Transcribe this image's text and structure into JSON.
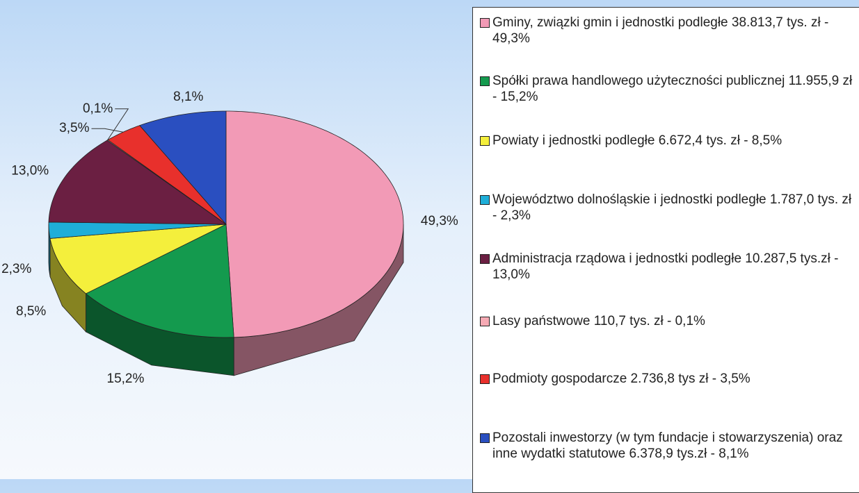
{
  "chart_data": {
    "type": "pie",
    "categories": [
      "Gminy, związki gmin i jednostki podległe 38.813,7 tys. zł - 49,3%",
      "Spółki prawa handlowego użyteczności publicznej 11.955,9 zł - 15,2%",
      "Powiaty i jednostki podległe 6.672,4 tys. zł - 8,5%",
      "Województwo dolnośląskie i jednostki  podległe 1.787,0 tys. zł - 2,3%",
      "Administracja rządowa i jednostki podległe  10.287,5 tys.zł - 13,0%",
      "Lasy państwowe 110,7 tys. zł - 0,1%",
      "Podmioty gospodarcze 2.736,8 tys zł - 3,5%",
      "Pozostali inwestorzy (w tym fundacje i stowarzyszenia) oraz inne wydatki statutowe 6.378,9 tys.zł - 8,1%"
    ],
    "values": [
      49.3,
      15.2,
      8.5,
      2.3,
      13.0,
      0.1,
      3.5,
      8.1
    ],
    "value_labels": [
      "49,3%",
      "15,2%",
      "8,5%",
      "2,3%",
      "13,0%",
      "0,1%",
      "3,5%",
      "8,1%"
    ],
    "colors": [
      "#f29ab6",
      "#149a4e",
      "#f4ef3c",
      "#1eaed8",
      "#6b1f42",
      "#f6aab4",
      "#e8302c",
      "#2a4fc0"
    ],
    "legend": "right"
  }
}
